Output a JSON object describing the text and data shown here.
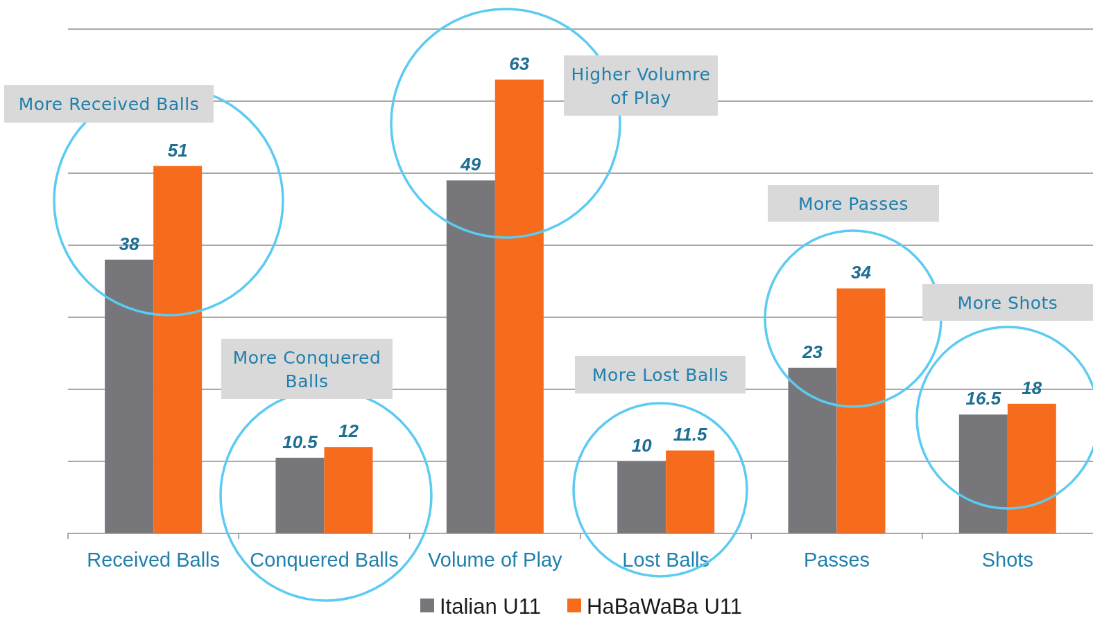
{
  "chart_data": {
    "type": "bar",
    "categories": [
      "Received Balls",
      "Conquered Balls",
      "Volume of Play",
      "Lost Balls",
      "Passes",
      "Shots"
    ],
    "series": [
      {
        "name": "Italian U11",
        "color": "#77777b",
        "values": [
          38,
          10.5,
          49,
          10,
          23,
          16.5
        ]
      },
      {
        "name": "HaBaWaBa U11",
        "color": "#f76b1c",
        "values": [
          51,
          12,
          63,
          11.5,
          34,
          18
        ]
      }
    ],
    "ylim": [
      0,
      70
    ],
    "yticks": [
      {
        "value": 0,
        "label": null
      },
      {
        "value": 10,
        "label": null
      },
      {
        "value": 20,
        "label": null
      },
      {
        "value": 30,
        "label": null
      },
      {
        "value": 40,
        "label": null
      },
      {
        "value": 50,
        "label": null
      },
      {
        "value": 60,
        "label": null
      },
      {
        "value": 70,
        "label": null
      }
    ],
    "tick_labels": "x",
    "grid": "y",
    "data_labels": true,
    "legend": "bottom",
    "annotations": [
      "More Received Balls",
      "More Conquered Balls",
      "Higher Volumre of Play",
      "More Lost Balls",
      "More Passes",
      "More Shots"
    ]
  }
}
